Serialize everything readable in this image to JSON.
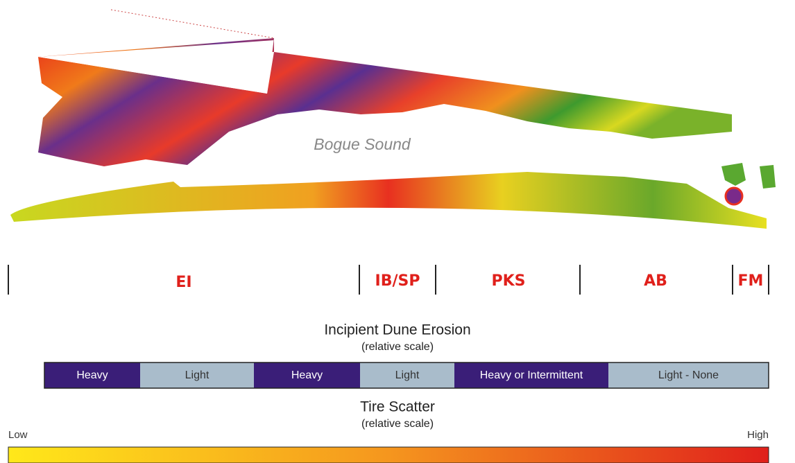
{
  "map": {
    "water_label": "Bogue Sound"
  },
  "sections": [
    "EI",
    "IB/SP",
    "PKS",
    "AB",
    "FM"
  ],
  "erosion": {
    "title": "Incipient Dune Erosion",
    "subtitle": "(relative scale)",
    "segments": [
      {
        "label": "Heavy",
        "color": "#3a1e78"
      },
      {
        "label": "Light",
        "color": "#a9bccb"
      },
      {
        "label": "Heavy",
        "color": "#3a1e78"
      },
      {
        "label": "Light",
        "color": "#a9bccb"
      },
      {
        "label": "Heavy or Intermittent",
        "color": "#3a1e78"
      },
      {
        "label": "Light - None",
        "color": "#a9bccb"
      }
    ]
  },
  "tire_scatter": {
    "title": "Tire Scatter",
    "subtitle": "(relative scale)",
    "low_label": "Low",
    "high_label": "High"
  }
}
